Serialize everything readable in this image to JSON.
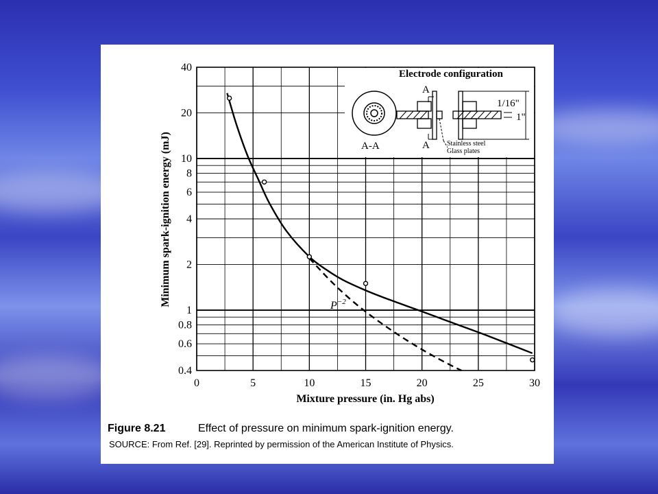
{
  "figure": {
    "number": "Figure 8.21",
    "caption": "Effect of pressure on minimum spark-ignition energy.",
    "source": "SOURCE: From Ref. [29]. Reprinted by permission of the American Institute of Physics."
  },
  "inset": {
    "title": "Electrode configuration",
    "section_label": "A-A",
    "marker_top": "A",
    "marker_bottom": "A",
    "dim_gap": "1/16\"",
    "dim_width": "1\"",
    "note_steel": "Stainless steel",
    "note_glass": "Glass plates"
  },
  "chart_data": {
    "type": "line",
    "xlabel": "Mixture pressure (in. Hg abs)",
    "ylabel": "Minimum spark-ignition energy (mJ)",
    "xlim": [
      0,
      30
    ],
    "ylim": [
      0.4,
      40
    ],
    "yscale": "log",
    "grid": true,
    "x_ticks": [
      "0",
      "5",
      "10",
      "15",
      "20",
      "25",
      "30"
    ],
    "y_ticks": [
      "0.4",
      "0.6",
      "0.8",
      "1",
      "2",
      "4",
      "6",
      "8",
      "10",
      "20",
      "40"
    ],
    "curve_label": "P",
    "curve_label_exponent": "−2",
    "series": [
      {
        "style": "solid",
        "x": [
          2.7,
          3.5,
          4.5,
          5.5,
          6.5,
          8,
          10,
          11.5,
          13,
          15,
          17,
          20,
          23,
          26,
          29.8
        ],
        "y": [
          27,
          17,
          10.5,
          7.2,
          5,
          3.3,
          2.25,
          1.85,
          1.58,
          1.35,
          1.18,
          0.98,
          0.81,
          0.67,
          0.52
        ]
      },
      {
        "style": "dashed",
        "x": [
          10,
          12,
          14,
          16,
          18,
          20,
          22,
          23.5
        ],
        "y": [
          2.2,
          1.53,
          1.12,
          0.86,
          0.68,
          0.55,
          0.455,
          0.4
        ]
      },
      {
        "style": "points",
        "x": [
          2.9,
          6,
          10,
          15,
          29.8
        ],
        "y": [
          25,
          7,
          2.25,
          1.5,
          0.47
        ]
      }
    ]
  }
}
